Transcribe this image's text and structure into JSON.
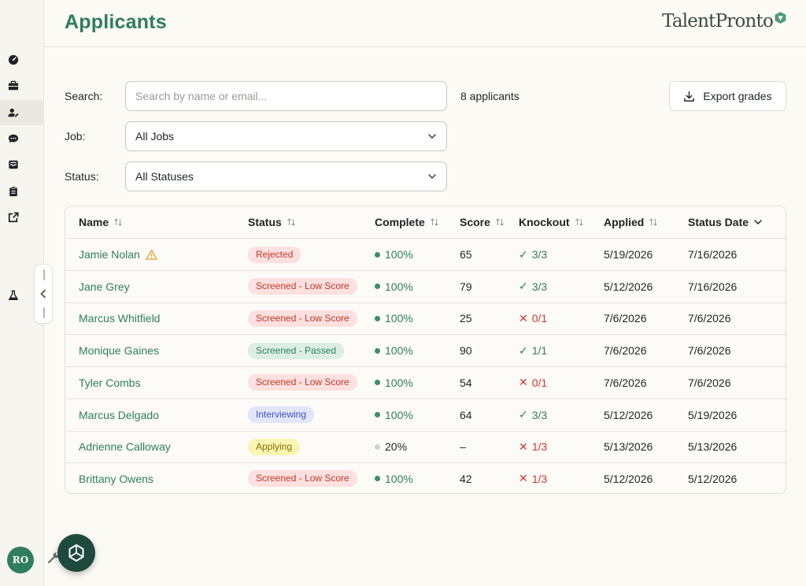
{
  "header": {
    "title": "Applicants",
    "brand": "TalentPronto"
  },
  "filters": {
    "search_label": "Search:",
    "search_placeholder": "Search by name or email...",
    "search_value": "",
    "count_text": "8 applicants",
    "job_label": "Job:",
    "job_value": "All Jobs",
    "status_label": "Status:",
    "status_value": "All Statuses",
    "export_label": "Export grades"
  },
  "table": {
    "columns": [
      "Name",
      "Status",
      "Complete",
      "Score",
      "Knockout",
      "Applied",
      "Status Date"
    ],
    "rows": [
      {
        "name": "Jamie Nolan",
        "warning": true,
        "status": "Rejected",
        "status_color": "red",
        "complete": "100%",
        "complete_dot": "green",
        "score": "65",
        "ko_icon": "✓",
        "knockout": "3/3",
        "ko_pass": true,
        "applied": "5/19/2026",
        "status_date": "7/16/2026"
      },
      {
        "name": "Jane Grey",
        "warning": false,
        "status": "Screened - Low Score",
        "status_color": "red",
        "complete": "100%",
        "complete_dot": "green",
        "score": "79",
        "ko_icon": "✓",
        "knockout": "3/3",
        "ko_pass": true,
        "applied": "5/12/2026",
        "status_date": "7/16/2026"
      },
      {
        "name": "Marcus Whitfield",
        "warning": false,
        "status": "Screened - Low Score",
        "status_color": "red",
        "complete": "100%",
        "complete_dot": "green",
        "score": "25",
        "ko_icon": "✕",
        "knockout": "0/1",
        "ko_pass": false,
        "applied": "7/6/2026",
        "status_date": "7/6/2026"
      },
      {
        "name": "Monique Gaines",
        "warning": false,
        "status": "Screened - Passed",
        "status_color": "green",
        "complete": "100%",
        "complete_dot": "green",
        "score": "90",
        "ko_icon": "✓",
        "knockout": "1/1",
        "ko_pass": true,
        "applied": "7/6/2026",
        "status_date": "7/6/2026"
      },
      {
        "name": "Tyler Combs",
        "warning": false,
        "status": "Screened - Low Score",
        "status_color": "red",
        "complete": "100%",
        "complete_dot": "green",
        "score": "54",
        "ko_icon": "✕",
        "knockout": "0/1",
        "ko_pass": false,
        "applied": "7/6/2026",
        "status_date": "7/6/2026"
      },
      {
        "name": "Marcus Delgado",
        "warning": false,
        "status": "Interviewing",
        "status_color": "blue",
        "complete": "100%",
        "complete_dot": "green",
        "score": "64",
        "ko_icon": "✓",
        "knockout": "3/3",
        "ko_pass": true,
        "applied": "5/12/2026",
        "status_date": "5/19/2026"
      },
      {
        "name": "Adrienne Calloway",
        "warning": false,
        "status": "Applying",
        "status_color": "yellow",
        "complete": "20%",
        "complete_dot": "gray",
        "score": "–",
        "ko_icon": "✕",
        "knockout": "1/3",
        "ko_pass": false,
        "applied": "5/13/2026",
        "status_date": "5/13/2026"
      },
      {
        "name": "Brittany Owens",
        "warning": false,
        "status": "Screened - Low Score",
        "status_color": "red",
        "complete": "100%",
        "complete_dot": "green",
        "score": "42",
        "ko_icon": "✕",
        "knockout": "1/3",
        "ko_pass": false,
        "applied": "5/12/2026",
        "status_date": "5/12/2026"
      }
    ]
  },
  "sidebar": {
    "avatar_initials": "RO",
    "items": [
      {
        "icon": "dashboard-icon"
      },
      {
        "icon": "briefcase-icon"
      },
      {
        "icon": "user-edit-icon",
        "active": true
      },
      {
        "icon": "chat-icon"
      },
      {
        "icon": "inbox-icon"
      },
      {
        "icon": "clipboard-icon"
      },
      {
        "icon": "external-link-icon"
      },
      {
        "icon": "flask-icon"
      }
    ]
  },
  "colors": {
    "accent": "#2f7d5f",
    "background": "#fbfaf5",
    "fail": "#d0392b",
    "fab": "#1e4a3d"
  }
}
